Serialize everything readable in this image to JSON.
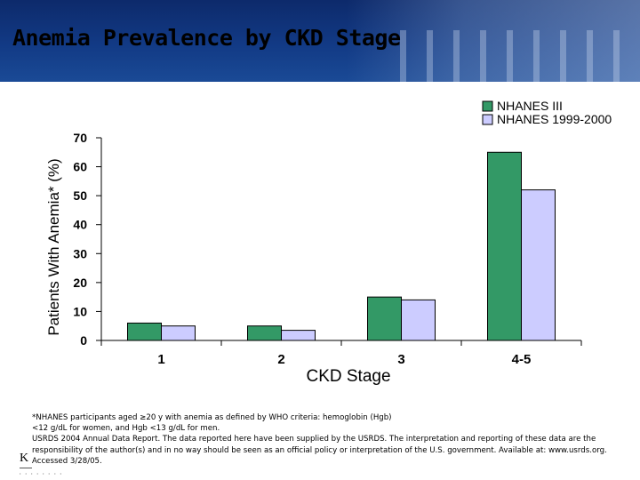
{
  "slide": {
    "title": "Anemia Prevalence by CKD Stage"
  },
  "footnote": {
    "line1": "*NHANES participants aged ≥20 y with anemia as defined by WHO criteria: hemoglobin (Hgb)",
    "line2": "<12 g/dL for women, and Hgb <13 g/dL for men.",
    "line3": "USRDS 2004 Annual Data Report. The data reported here have been supplied by the USRDS. The interpretation and reporting of these data are the responsibility of the author(s) and in no way should be seen as an official policy or interpretation of the U.S. government. Available at: www.usrds.org. Accessed 3/28/05."
  },
  "logo": {
    "letter": "K"
  },
  "colors": {
    "series1": "#339966",
    "series2": "#ccccff",
    "header": "#123a85"
  },
  "chart_data": {
    "type": "bar",
    "title": "Anemia Prevalence by CKD Stage",
    "xlabel": "CKD Stage",
    "ylabel": "Patients With Anemia* (%)",
    "categories": [
      "1",
      "2",
      "3",
      "4-5"
    ],
    "series": [
      {
        "name": "NHANES III",
        "values": [
          6,
          5,
          15,
          65
        ]
      },
      {
        "name": "NHANES 1999-2000",
        "values": [
          5,
          3.5,
          14,
          52
        ]
      }
    ],
    "ylim": [
      0,
      70
    ],
    "yticks": [
      0,
      10,
      20,
      30,
      40,
      50,
      60,
      70
    ],
    "legend_position": "top-right",
    "grid": false
  }
}
